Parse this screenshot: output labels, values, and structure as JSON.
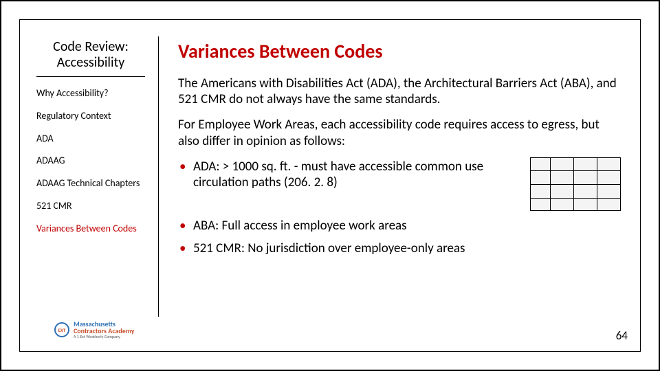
{
  "colors": {
    "accent": "#c00000",
    "text": "#000000",
    "border": "#000000",
    "background": "#ffffff",
    "logo_blue": "#2e6fb5",
    "logo_orange": "#c94f2c"
  },
  "sidebar": {
    "title_line1": "Code Review:",
    "title_line2": "Accessibility",
    "items": [
      {
        "label": "Why Accessibility?",
        "active": false
      },
      {
        "label": "Regulatory Context",
        "active": false
      },
      {
        "label": "ADA",
        "active": false
      },
      {
        "label": "ADAAG",
        "active": false
      },
      {
        "label": "ADAAG Technical Chapters",
        "active": false
      },
      {
        "label": "521 CMR",
        "active": false
      },
      {
        "label": "Variances Between Codes",
        "active": true
      }
    ],
    "logo": {
      "badge": "EXT",
      "line1": "Massachusetts",
      "line2": "Contractors Academy",
      "tagline": "A 1 Ext Weatherly Company"
    }
  },
  "content": {
    "title": "Variances Between Codes",
    "para1": "The Americans with Disabilities Act (ADA), the Architectural Barriers Act (ABA), and 521 CMR do not always have the same standards.",
    "para2": "For Employee Work Areas, each accessibility code requires access to egress, but also differ in opinion as follows:",
    "bullets": [
      "ADA: > 1000 sq. ft. - must have accessible common use circulation paths (206. 2. 8)",
      "ABA: Full access in employee work areas",
      "521 CMR: No jurisdiction over employee-only areas"
    ]
  },
  "page_number": "64"
}
